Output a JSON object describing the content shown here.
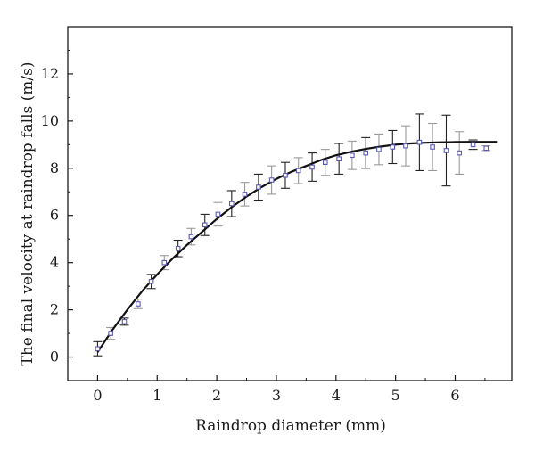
{
  "chart_data": {
    "type": "scatter",
    "title": "",
    "xlabel": "Raindrop diameter (mm)",
    "ylabel": "The final velocity at raindrop falls (m/s)",
    "xlim": [
      -0.5,
      6.95
    ],
    "ylim": [
      -1,
      14
    ],
    "x_ticks": [
      "0",
      "1",
      "2",
      "3",
      "4",
      "5",
      "6"
    ],
    "y_ticks": [
      "0",
      "2",
      "4",
      "6",
      "8",
      "10",
      "12"
    ],
    "grid": false,
    "legend": "none",
    "colors": {
      "marker": "#5a5ab4",
      "fit": "#111111",
      "error_dark": "#222222",
      "error_light": "#999999"
    },
    "series": [
      {
        "kind": "measured",
        "x": [
          0,
          0.22,
          0.45,
          0.68,
          0.9,
          1.12,
          1.35,
          1.57,
          1.8,
          2.02,
          2.25,
          2.47,
          2.7,
          2.92,
          3.15,
          3.37,
          3.6,
          3.82,
          4.05,
          4.27,
          4.5,
          4.72,
          4.95,
          5.17,
          5.4,
          5.62,
          5.85,
          6.07,
          6.3,
          6.52
        ],
        "y": [
          0.35,
          1.0,
          1.5,
          2.25,
          3.2,
          4.0,
          4.6,
          5.1,
          5.6,
          6.05,
          6.5,
          6.9,
          7.2,
          7.5,
          7.7,
          7.9,
          8.05,
          8.25,
          8.4,
          8.55,
          8.65,
          8.8,
          8.9,
          8.95,
          9.1,
          8.9,
          8.75,
          8.65,
          9.0,
          8.85
        ],
        "err": [
          0.3,
          0.25,
          0.15,
          0.2,
          0.3,
          0.3,
          0.35,
          0.35,
          0.45,
          0.5,
          0.55,
          0.5,
          0.55,
          0.6,
          0.55,
          0.55,
          0.6,
          0.55,
          0.65,
          0.6,
          0.65,
          0.65,
          0.7,
          0.85,
          1.2,
          1.0,
          1.5,
          0.9,
          0.2,
          0.1
        ]
      },
      {
        "kind": "fit",
        "x": [
          0,
          0.25,
          0.5,
          0.75,
          1,
          1.25,
          1.5,
          1.75,
          2,
          2.25,
          2.5,
          2.75,
          3,
          3.25,
          3.5,
          3.75,
          4,
          4.25,
          4.5,
          4.75,
          5,
          5.25,
          5.5,
          5.75,
          6,
          6.25,
          6.5,
          6.7
        ],
        "y": [
          0.2,
          1.15,
          2.0,
          2.8,
          3.5,
          4.15,
          4.75,
          5.3,
          5.85,
          6.35,
          6.8,
          7.2,
          7.55,
          7.85,
          8.1,
          8.35,
          8.55,
          8.7,
          8.82,
          8.92,
          9.0,
          9.05,
          9.08,
          9.1,
          9.11,
          9.12,
          9.12,
          9.12
        ]
      }
    ]
  }
}
